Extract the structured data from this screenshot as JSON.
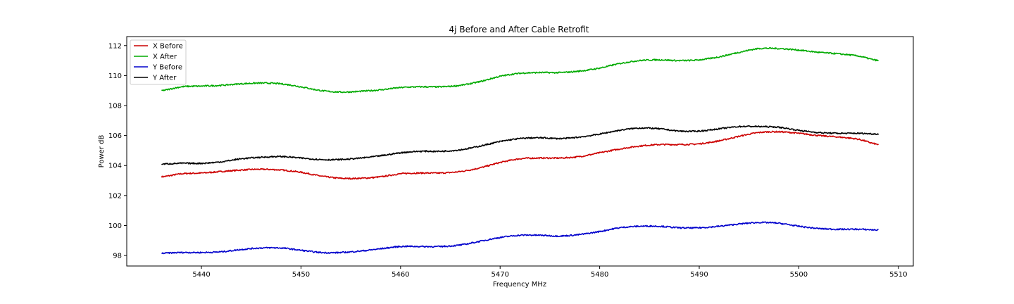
{
  "chart_data": {
    "type": "line",
    "title": "4j Before and After Cable Retrofit",
    "xlabel": "Frequency MHz",
    "ylabel": "Power dB",
    "xlim": [
      5432.5,
      5511.5
    ],
    "ylim": [
      97.3,
      112.6
    ],
    "xticks": [
      5440,
      5450,
      5460,
      5470,
      5480,
      5490,
      5500,
      5510
    ],
    "yticks": [
      98,
      100,
      102,
      104,
      106,
      108,
      110,
      112
    ],
    "legend_position": "upper-left",
    "series": [
      {
        "name": "X Before",
        "color": "#cc0000",
        "x": [
          5436,
          5438,
          5440,
          5442,
          5444,
          5446,
          5448,
          5450,
          5452,
          5454,
          5456,
          5458,
          5460,
          5462,
          5464,
          5466,
          5468,
          5470,
          5472,
          5474,
          5476,
          5478,
          5480,
          5482,
          5484,
          5486,
          5488,
          5490,
          5492,
          5494,
          5496,
          5498,
          5500,
          5502,
          5504,
          5506,
          5508
        ],
        "y": [
          103.25,
          103.45,
          103.5,
          103.6,
          103.7,
          103.75,
          103.7,
          103.55,
          103.3,
          103.15,
          103.15,
          103.25,
          103.45,
          103.5,
          103.5,
          103.6,
          103.85,
          104.2,
          104.45,
          104.5,
          104.5,
          104.6,
          104.85,
          105.1,
          105.3,
          105.4,
          105.4,
          105.45,
          105.65,
          105.95,
          106.2,
          106.25,
          106.15,
          106.0,
          105.9,
          105.75,
          105.4
        ]
      },
      {
        "name": "X After",
        "color": "#00aa00",
        "x": [
          5436,
          5438,
          5440,
          5442,
          5444,
          5446,
          5448,
          5450,
          5452,
          5454,
          5456,
          5458,
          5460,
          5462,
          5464,
          5466,
          5468,
          5470,
          5472,
          5474,
          5476,
          5478,
          5480,
          5482,
          5484,
          5486,
          5488,
          5490,
          5492,
          5494,
          5496,
          5498,
          5500,
          5502,
          5504,
          5506,
          5508
        ],
        "y": [
          109.0,
          109.25,
          109.3,
          109.35,
          109.45,
          109.5,
          109.45,
          109.25,
          109.0,
          108.9,
          108.95,
          109.05,
          109.2,
          109.25,
          109.25,
          109.35,
          109.6,
          109.95,
          110.15,
          110.2,
          110.2,
          110.3,
          110.5,
          110.8,
          111.0,
          111.05,
          111.0,
          111.05,
          111.25,
          111.55,
          111.8,
          111.8,
          111.7,
          111.55,
          111.45,
          111.3,
          111.0
        ]
      },
      {
        "name": "Y Before",
        "color": "#0000cc",
        "x": [
          5436,
          5438,
          5440,
          5442,
          5444,
          5446,
          5448,
          5450,
          5452,
          5454,
          5456,
          5458,
          5460,
          5462,
          5464,
          5466,
          5468,
          5470,
          5472,
          5474,
          5476,
          5478,
          5480,
          5482,
          5484,
          5486,
          5488,
          5490,
          5492,
          5494,
          5496,
          5498,
          5500,
          5502,
          5504,
          5506,
          5508
        ],
        "y": [
          98.15,
          98.2,
          98.2,
          98.25,
          98.4,
          98.5,
          98.5,
          98.35,
          98.2,
          98.2,
          98.3,
          98.45,
          98.6,
          98.6,
          98.6,
          98.7,
          98.95,
          99.2,
          99.35,
          99.35,
          99.3,
          99.4,
          99.6,
          99.85,
          99.95,
          99.95,
          99.85,
          99.85,
          99.95,
          100.1,
          100.2,
          100.15,
          99.95,
          99.8,
          99.75,
          99.75,
          99.7
        ]
      },
      {
        "name": "Y After",
        "color": "#000000",
        "x": [
          5436,
          5438,
          5440,
          5442,
          5444,
          5446,
          5448,
          5450,
          5452,
          5454,
          5456,
          5458,
          5460,
          5462,
          5464,
          5466,
          5468,
          5470,
          5472,
          5474,
          5476,
          5478,
          5480,
          5482,
          5484,
          5486,
          5488,
          5490,
          5492,
          5494,
          5496,
          5498,
          5500,
          5502,
          5504,
          5506,
          5508
        ],
        "y": [
          104.1,
          104.15,
          104.15,
          104.25,
          104.45,
          104.55,
          104.6,
          104.5,
          104.4,
          104.4,
          104.5,
          104.65,
          104.85,
          104.95,
          104.95,
          105.05,
          105.3,
          105.6,
          105.8,
          105.85,
          105.8,
          105.9,
          106.1,
          106.35,
          106.5,
          106.45,
          106.3,
          106.3,
          106.45,
          106.6,
          106.6,
          106.55,
          106.35,
          106.2,
          106.15,
          106.15,
          106.1
        ]
      }
    ]
  }
}
